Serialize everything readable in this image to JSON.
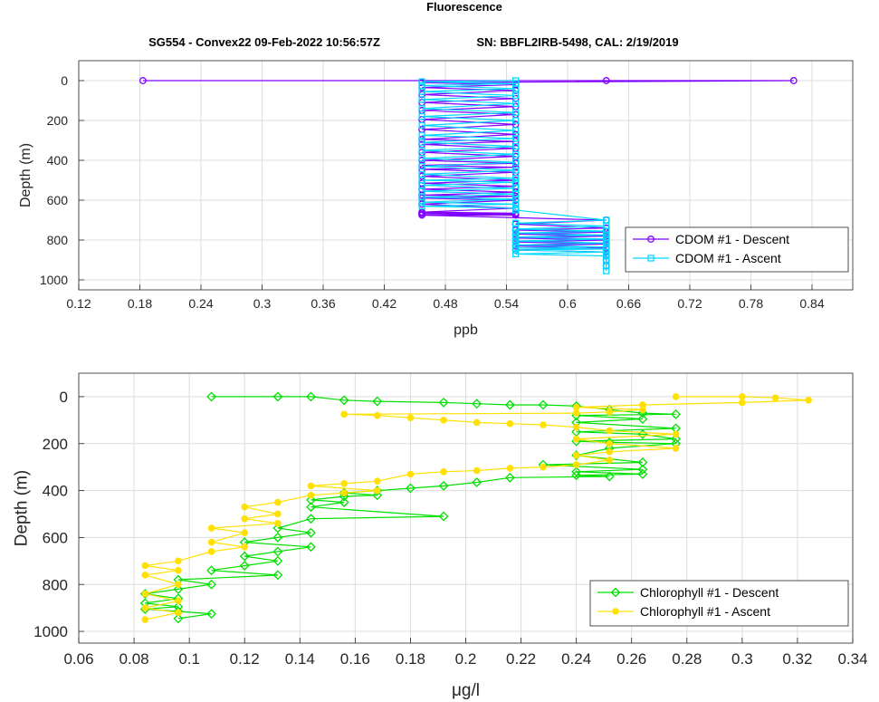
{
  "figure": {
    "title": "Fluorescence",
    "subtitle_left": "SG554 - Convex22 09-Feb-2022 10:56:57Z",
    "subtitle_right": "SN: BBFL2IRB-5498, CAL: 2/19/2019"
  },
  "colors": {
    "cdom_descent": "#7f00ff",
    "cdom_ascent": "#00d8ff",
    "chl_descent": "#00e000",
    "chl_ascent": "#ffe000",
    "grid": "#dcdcdc",
    "axis": "#262626"
  },
  "chart_data": [
    {
      "type": "line",
      "xlabel": "ppb",
      "ylabel": "Depth (m)",
      "xlim": [
        0.12,
        0.88
      ],
      "ylim": [
        1050,
        -100
      ],
      "y_reversed": true,
      "grid": true,
      "legend_position": "bottom-right",
      "xticks": [
        0.12,
        0.18,
        0.24,
        0.3,
        0.36,
        0.42,
        0.48,
        0.54,
        0.6,
        0.66,
        0.72,
        0.78,
        0.84
      ],
      "xtick_labels": [
        "0.12",
        "0.18",
        "0.24",
        "0.3",
        "0.36",
        "0.42",
        "0.48",
        "0.54",
        "0.6",
        "0.66",
        "0.72",
        "0.78",
        "0.84"
      ],
      "yticks": [
        0,
        200,
        400,
        600,
        800,
        1000
      ],
      "ytick_labels": [
        "0",
        "200",
        "400",
        "600",
        "800",
        "1000"
      ],
      "series": [
        {
          "name": "CDOM #1 - Descent",
          "marker": "circle",
          "x": [
            0.183,
            0.638,
            0.822,
            0.457,
            0.549,
            0.457,
            0.549,
            0.457,
            0.549,
            0.457,
            0.549,
            0.457,
            0.549,
            0.457,
            0.549,
            0.457,
            0.549,
            0.457,
            0.549,
            0.457,
            0.549,
            0.457,
            0.549,
            0.457,
            0.549,
            0.457,
            0.549,
            0.457,
            0.549,
            0.457,
            0.549,
            0.457,
            0.549,
            0.457,
            0.549,
            0.457,
            0.549,
            0.457,
            0.549,
            0.457,
            0.549,
            0.457,
            0.549,
            0.457,
            0.549,
            0.457,
            0.549,
            0.457,
            0.638,
            0.549,
            0.638,
            0.549,
            0.638,
            0.549,
            0.638,
            0.549,
            0.638,
            0.549,
            0.638,
            0.549,
            0.638,
            0.549,
            0.638,
            0.638,
            0.638,
            0.638
          ],
          "y": [
            0,
            0,
            0,
            10,
            20,
            35,
            50,
            70,
            90,
            110,
            130,
            150,
            170,
            195,
            220,
            245,
            270,
            295,
            305,
            320,
            340,
            360,
            380,
            400,
            415,
            425,
            435,
            445,
            460,
            480,
            500,
            515,
            530,
            545,
            560,
            575,
            580,
            590,
            600,
            620,
            640,
            660,
            665,
            665,
            670,
            672,
            675,
            675,
            700,
            720,
            740,
            750,
            760,
            770,
            780,
            790,
            800,
            810,
            820,
            830,
            840,
            850,
            860,
            880,
            900,
            930
          ]
        },
        {
          "name": "CDOM #1 - Ascent",
          "marker": "square",
          "x": [
            0.549,
            0.457,
            0.549,
            0.457,
            0.549,
            0.457,
            0.549,
            0.457,
            0.549,
            0.457,
            0.549,
            0.457,
            0.549,
            0.457,
            0.549,
            0.457,
            0.549,
            0.457,
            0.549,
            0.457,
            0.549,
            0.457,
            0.549,
            0.457,
            0.549,
            0.457,
            0.549,
            0.457,
            0.549,
            0.457,
            0.549,
            0.457,
            0.549,
            0.457,
            0.549,
            0.457,
            0.549,
            0.457,
            0.549,
            0.549,
            0.638,
            0.549,
            0.638,
            0.549,
            0.638,
            0.549,
            0.638,
            0.549,
            0.638,
            0.549,
            0.638,
            0.549,
            0.638,
            0.549,
            0.638,
            0.549,
            0.638,
            0.549,
            0.638,
            0.638,
            0.638,
            0.638
          ],
          "y": [
            0,
            5,
            15,
            25,
            40,
            55,
            75,
            95,
            115,
            140,
            160,
            180,
            200,
            225,
            250,
            275,
            290,
            310,
            330,
            350,
            370,
            390,
            410,
            430,
            450,
            470,
            490,
            500,
            510,
            525,
            540,
            555,
            570,
            585,
            595,
            610,
            620,
            630,
            640,
            650,
            700,
            715,
            730,
            745,
            755,
            765,
            775,
            785,
            795,
            805,
            815,
            825,
            835,
            840,
            845,
            850,
            860,
            870,
            880,
            900,
            930,
            955
          ]
        }
      ],
      "legend": [
        "CDOM #1 - Descent",
        "CDOM #1 - Ascent"
      ]
    },
    {
      "type": "line",
      "xlabel": "μg/l",
      "ylabel": "Depth (m)",
      "xlim": [
        0.06,
        0.34
      ],
      "ylim": [
        1050,
        -100
      ],
      "y_reversed": true,
      "grid": true,
      "legend_position": "bottom-right",
      "xticks": [
        0.06,
        0.08,
        0.1,
        0.12,
        0.14,
        0.16,
        0.18,
        0.2,
        0.22,
        0.24,
        0.26,
        0.28,
        0.3,
        0.32,
        0.34
      ],
      "xtick_labels": [
        "0.06",
        "0.08",
        "0.1",
        "0.12",
        "0.14",
        "0.16",
        "0.18",
        "0.2",
        "0.22",
        "0.24",
        "0.26",
        "0.28",
        "0.3",
        "0.32",
        "0.34"
      ],
      "yticks": [
        0,
        200,
        400,
        600,
        800,
        1000
      ],
      "ytick_labels": [
        "0",
        "200",
        "400",
        "600",
        "800",
        "1000"
      ],
      "series": [
        {
          "name": "Chlorophyll #1 - Descent",
          "marker": "diamond",
          "x": [
            0.108,
            0.132,
            0.144,
            0.156,
            0.168,
            0.192,
            0.204,
            0.216,
            0.228,
            0.24,
            0.252,
            0.264,
            0.276,
            0.24,
            0.264,
            0.24,
            0.276,
            0.24,
            0.264,
            0.276,
            0.24,
            0.252,
            0.276,
            0.252,
            0.24,
            0.264,
            0.228,
            0.264,
            0.24,
            0.264,
            0.24,
            0.252,
            0.216,
            0.204,
            0.192,
            0.18,
            0.168,
            0.156,
            0.168,
            0.156,
            0.144,
            0.156,
            0.144,
            0.192,
            0.144,
            0.132,
            0.144,
            0.132,
            0.12,
            0.144,
            0.132,
            0.12,
            0.132,
            0.12,
            0.108,
            0.132,
            0.096,
            0.108,
            0.096,
            0.084,
            0.096,
            0.084,
            0.096,
            0.084,
            0.096,
            0.108,
            0.096
          ],
          "y": [
            0,
            0,
            0,
            15,
            20,
            25,
            30,
            35,
            35,
            40,
            55,
            70,
            75,
            80,
            95,
            110,
            135,
            150,
            160,
            180,
            190,
            195,
            200,
            220,
            250,
            280,
            290,
            310,
            320,
            330,
            335,
            340,
            345,
            365,
            380,
            390,
            400,
            410,
            420,
            425,
            440,
            450,
            470,
            510,
            520,
            560,
            580,
            600,
            620,
            640,
            660,
            680,
            700,
            720,
            740,
            760,
            780,
            800,
            820,
            840,
            860,
            880,
            895,
            905,
            915,
            925,
            945
          ]
        },
        {
          "name": "Chlorophyll #1 - Ascent",
          "marker": "circle-filled",
          "x": [
            0.276,
            0.3,
            0.312,
            0.324,
            0.3,
            0.264,
            0.24,
            0.264,
            0.252,
            0.24,
            0.156,
            0.168,
            0.18,
            0.192,
            0.204,
            0.216,
            0.228,
            0.24,
            0.252,
            0.276,
            0.24,
            0.252,
            0.276,
            0.252,
            0.24,
            0.252,
            0.24,
            0.228,
            0.216,
            0.204,
            0.192,
            0.18,
            0.168,
            0.156,
            0.144,
            0.168,
            0.156,
            0.144,
            0.132,
            0.12,
            0.132,
            0.12,
            0.132,
            0.108,
            0.12,
            0.108,
            0.12,
            0.108,
            0.096,
            0.084,
            0.096,
            0.084,
            0.096,
            0.084,
            0.096,
            0.084,
            0.096,
            0.084
          ],
          "y": [
            0,
            0,
            5,
            15,
            25,
            35,
            45,
            55,
            65,
            70,
            75,
            80,
            90,
            100,
            110,
            115,
            120,
            130,
            145,
            160,
            180,
            200,
            220,
            235,
            250,
            270,
            290,
            300,
            305,
            315,
            320,
            330,
            360,
            370,
            380,
            400,
            410,
            420,
            450,
            470,
            500,
            520,
            540,
            560,
            580,
            620,
            640,
            660,
            700,
            720,
            740,
            760,
            800,
            840,
            870,
            900,
            920,
            950
          ]
        }
      ],
      "legend": [
        "Chlorophyll #1 - Descent",
        "Chlorophyll #1 - Ascent"
      ]
    }
  ]
}
